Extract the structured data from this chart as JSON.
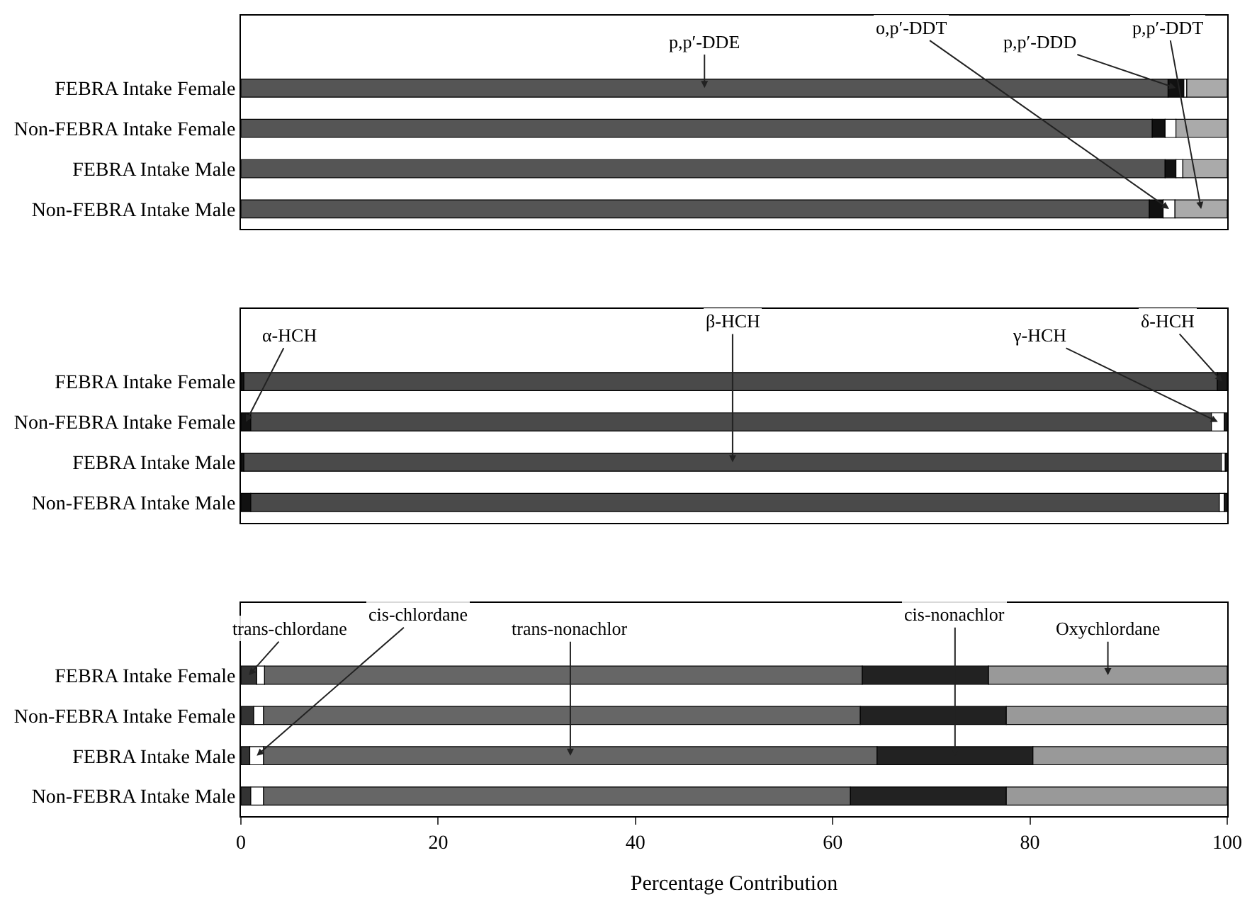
{
  "chart_data": [
    {
      "type": "bar",
      "orientation": "horizontal",
      "stacked": true,
      "categories": [
        "FEBRA Intake Female",
        "Non-FEBRA Intake Female",
        "FEBRA Intake Male",
        "Non-FEBRA Intake Male"
      ],
      "xlim": [
        0,
        100
      ],
      "xticks": [
        0,
        20,
        40,
        60,
        80,
        100
      ],
      "tick_labels": "y",
      "series": [
        {
          "name": "p,p′-DDE",
          "color": "#555555",
          "values": [
            94.0,
            92.4,
            93.7,
            92.1
          ]
        },
        {
          "name": "p,p′-DDD",
          "color": "#111111",
          "values": [
            1.6,
            1.3,
            1.1,
            1.4
          ]
        },
        {
          "name": "o,p′-DDT",
          "color": "#ffffff",
          "values": [
            0.3,
            1.1,
            0.7,
            1.2
          ]
        },
        {
          "name": "p,p′-DDT",
          "color": "#aaaaaa",
          "values": [
            4.1,
            5.2,
            4.5,
            5.3
          ]
        }
      ]
    },
    {
      "type": "bar",
      "orientation": "horizontal",
      "stacked": true,
      "categories": [
        "FEBRA Intake Female",
        "Non-FEBRA Intake Female",
        "FEBRA Intake Male",
        "Non-FEBRA Intake Male"
      ],
      "xlim": [
        0,
        100
      ],
      "xticks": [
        0,
        20,
        40,
        60,
        80,
        100
      ],
      "tick_labels": "y",
      "series": [
        {
          "name": "α-HCH",
          "color": "#111111",
          "values": [
            0.3,
            1.0,
            0.3,
            1.0
          ]
        },
        {
          "name": "β-HCH",
          "color": "#4a4a4a",
          "values": [
            98.7,
            97.4,
            99.1,
            98.2
          ]
        },
        {
          "name": "γ-HCH",
          "color": "#ffffff",
          "values": [
            null,
            1.3,
            0.4,
            0.5
          ]
        },
        {
          "name": "δ-HCH",
          "color": "#1a1a1a",
          "values": [
            1.0,
            0.3,
            0.2,
            0.3
          ]
        }
      ]
    },
    {
      "type": "bar",
      "orientation": "horizontal",
      "stacked": true,
      "categories": [
        "FEBRA Intake Female",
        "Non-FEBRA Intake Female",
        "FEBRA Intake Male",
        "Non-FEBRA Intake Male"
      ],
      "xlim": [
        0,
        100
      ],
      "xticks": [
        0,
        20,
        40,
        60,
        80,
        100
      ],
      "xlabel": "Percentage Contribution",
      "series": [
        {
          "name": "trans-chlordane",
          "color": "#333333",
          "values": [
            1.6,
            1.3,
            0.9,
            1.0
          ]
        },
        {
          "name": "cis-chlordane",
          "color": "#ffffff",
          "values": [
            0.8,
            1.0,
            1.4,
            1.3
          ]
        },
        {
          "name": "trans-nonachlor",
          "color": "#666666",
          "values": [
            60.6,
            60.5,
            62.2,
            59.5
          ]
        },
        {
          "name": "cis-nonachlor",
          "color": "#222222",
          "values": [
            12.8,
            14.8,
            15.8,
            15.8
          ]
        },
        {
          "name": "Oxychlordane",
          "color": "#999999",
          "values": [
            24.2,
            22.4,
            19.7,
            22.4
          ]
        }
      ]
    }
  ]
}
